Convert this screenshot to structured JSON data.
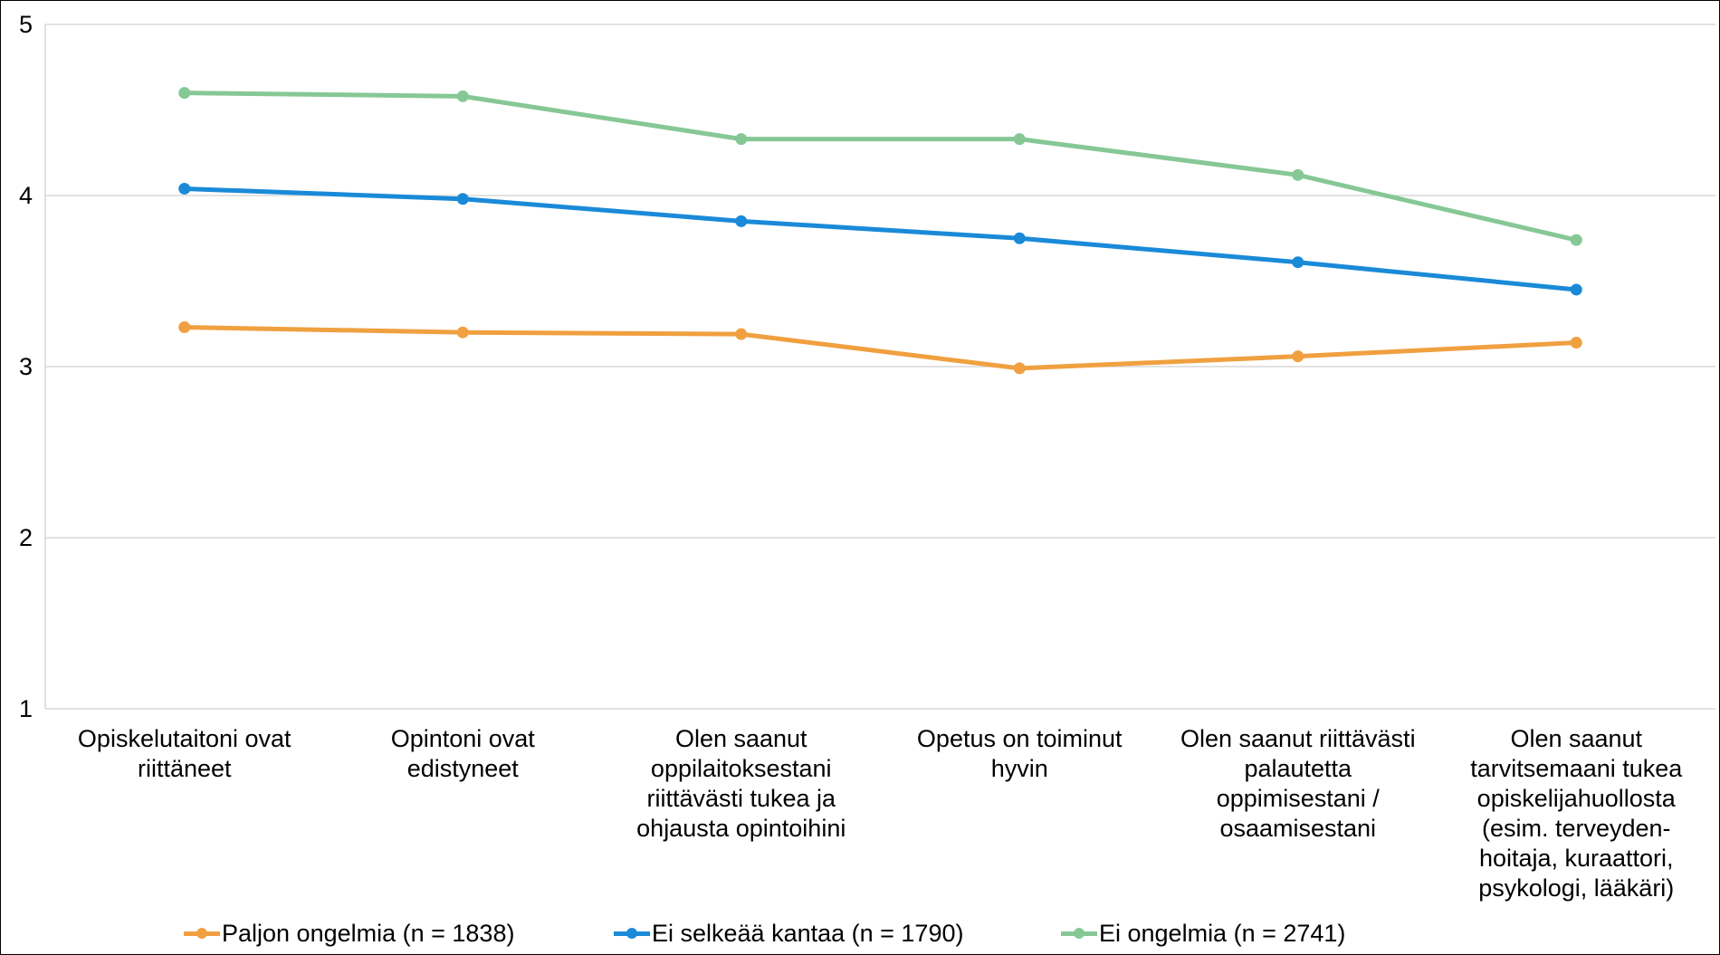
{
  "chart_data": {
    "type": "line",
    "title": "",
    "xlabel": "",
    "ylabel": "",
    "ylim": [
      1,
      5
    ],
    "yticks": [
      "1",
      "2",
      "3",
      "4",
      "5"
    ],
    "grid": "horizontal",
    "legend_position": "bottom",
    "categories": [
      "Opiskelutaitoni ovat\nriittäneet",
      "Opintoni ovat\nedistyneet",
      "Olen saanut\noppilaitoksestani\nriittävästi tukea ja\nohjausta opintoihini",
      "Opetus on toiminut\nhyvin",
      "Olen saanut riittävästi\npalautetta\noppimisestani /\nosaamisestani",
      "Olen saanut\ntarvitsemaani tukea\nopiskelijahuollosta\n(esim. terveyden-\nhoitaja, kuraattori,\npsykologi, lääkäri)"
    ],
    "series": [
      {
        "name": "Paljon ongelmia (n = 1838)",
        "color": "#F0A040",
        "values": [
          3.23,
          3.2,
          3.19,
          2.99,
          3.06,
          3.14
        ]
      },
      {
        "name": "Ei selkeää kantaa (n = 1790)",
        "color": "#1A8AD8",
        "values": [
          4.04,
          3.98,
          3.85,
          3.75,
          3.61,
          3.45
        ]
      },
      {
        "name": "Ei ongelmia (n = 2741)",
        "color": "#86C895",
        "values": [
          4.6,
          4.58,
          4.33,
          4.33,
          4.12,
          3.74
        ]
      }
    ]
  }
}
